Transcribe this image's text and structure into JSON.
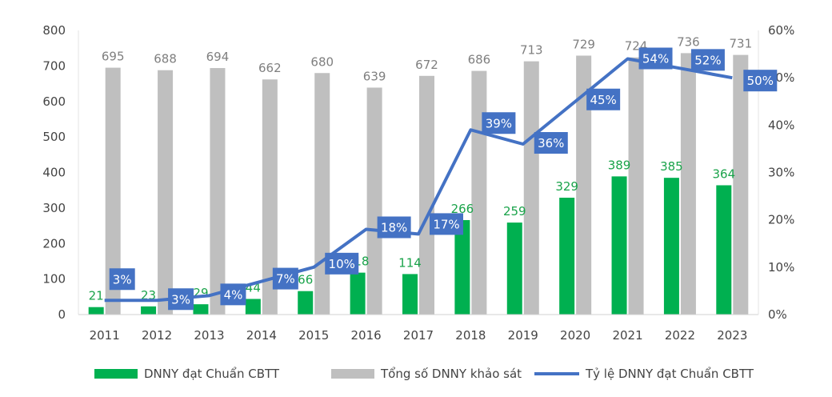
{
  "chart_data": {
    "type": "bar",
    "categories": [
      "2011",
      "2012",
      "2013",
      "2014",
      "2015",
      "2016",
      "2017",
      "2018",
      "2019",
      "2020",
      "2021",
      "2022",
      "2023"
    ],
    "series": [
      {
        "name": "DNNY đạt Chuẩn CBTT",
        "kind": "bar",
        "axis": "left",
        "color": "#00b050",
        "values": [
          21,
          23,
          29,
          44,
          66,
          118,
          114,
          266,
          259,
          329,
          389,
          385,
          364
        ],
        "labels": [
          "21",
          "23",
          "29",
          "44",
          "66",
          "118",
          "114",
          "266",
          "259",
          "329",
          "389",
          "385",
          "364"
        ]
      },
      {
        "name": "Tổng số DNNY khảo sát",
        "kind": "bar",
        "axis": "left",
        "color": "#bfbfbf",
        "values": [
          695,
          688,
          694,
          662,
          680,
          639,
          672,
          686,
          713,
          729,
          724,
          736,
          731
        ],
        "labels": [
          "695",
          "688",
          "694",
          "662",
          "680",
          "639",
          "672",
          "686",
          "713",
          "729",
          "724",
          "736",
          "731"
        ]
      },
      {
        "name": "Tỷ lệ DNNY đạt Chuẩn CBTT",
        "kind": "line",
        "axis": "right",
        "color": "#4472c4",
        "values": [
          3,
          3,
          4,
          7,
          10,
          18,
          17,
          39,
          36,
          45,
          54,
          52,
          50
        ],
        "labels": [
          "3%",
          "3%",
          "4%",
          "7%",
          "10%",
          "18%",
          "17%",
          "39%",
          "36%",
          "45%",
          "54%",
          "52%",
          "50%"
        ]
      }
    ],
    "y_left": {
      "min": 0,
      "max": 800,
      "ticks": [
        "0",
        "100",
        "200",
        "300",
        "400",
        "500",
        "600",
        "700",
        "800"
      ]
    },
    "y_right": {
      "min": 0,
      "max": 60,
      "ticks": [
        "0%",
        "10%",
        "20%",
        "30%",
        "40%",
        "50%",
        "60%"
      ]
    },
    "legend": "bottom",
    "grid": false
  }
}
